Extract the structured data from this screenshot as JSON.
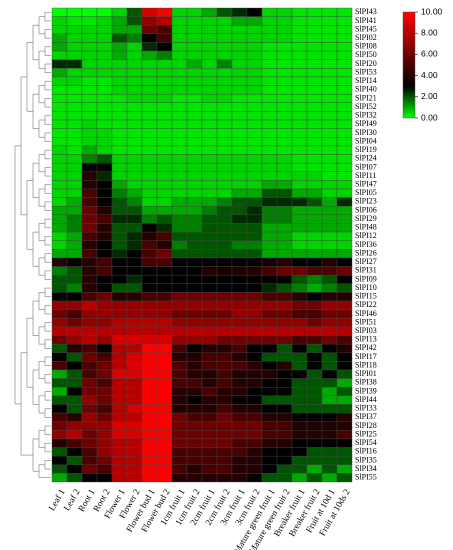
{
  "chart_data": {
    "type": "heatmap",
    "columns": [
      "Leaf 1",
      "Leaf 2",
      "Root 1",
      "Root 2",
      "Flower 1",
      "Flower 2",
      "Flower bud 1",
      "Flower bud 2",
      "1cm fruit 1",
      "1cm fruit 2",
      "2cm fruit 1",
      "2cm fruit 2",
      "3cm fruit 1",
      "3cm fruit 2",
      "Mature green fruit 1",
      "Mature green fruit 2",
      "Breaker fruit 1",
      "Breaker fruit 2",
      "Fruit at 10d 1",
      "Fruit at 10ds 2"
    ],
    "rows": [
      "SlPI43",
      "SlPI41",
      "SlPI45",
      "SlPI02",
      "SlPI08",
      "SlPI50",
      "SlPI20",
      "SlPI53",
      "SlPI14",
      "SlPI40",
      "SlPI21",
      "SlPI52",
      "SlPI32",
      "SlPI49",
      "SlPI30",
      "SlPI04",
      "SlPI19",
      "SlPI24",
      "SlPI07",
      "SlPI11",
      "SlPI47",
      "SlPI05",
      "SlPI23",
      "SlPI06",
      "SlPI29",
      "SlPI48",
      "SlPI12",
      "SlPI36",
      "SlPI26",
      "SlPI27",
      "SlPI31",
      "SlPI09",
      "SlPI10",
      "SlPI15",
      "SlPI22",
      "SlPI46",
      "SlPI51",
      "SlPI03",
      "SlPI13",
      "SlPI42",
      "SlPI17",
      "SlPI18",
      "SlPI01",
      "SlPI38",
      "SlPI39",
      "SlPI44",
      "SlPI33",
      "SlPI37",
      "SlPI28",
      "SlPI25",
      "SlPI54",
      "SlPI16",
      "SlPI35",
      "SlPI34",
      "SlPI55"
    ],
    "values": [
      [
        0,
        0,
        0,
        0,
        0.5,
        2,
        9,
        10,
        0.5,
        0.5,
        1,
        2,
        2.5,
        3,
        0.5,
        0.5,
        0.3,
        0.3,
        0.3,
        0.3
      ],
      [
        0.5,
        0.3,
        0.3,
        0.5,
        1,
        2,
        7,
        8,
        0.5,
        0.5,
        0.5,
        0.5,
        1,
        1,
        0.5,
        0.5,
        0.3,
        0.3,
        0.3,
        0.3
      ],
      [
        0.5,
        0.5,
        0.5,
        0.5,
        1,
        1,
        6,
        5,
        0.5,
        0.5,
        0.5,
        0.5,
        0.5,
        0.5,
        0.5,
        0.5,
        0.3,
        0.3,
        0.3,
        0.3
      ],
      [
        1,
        0.5,
        0.5,
        0.5,
        2,
        1.5,
        3,
        5,
        0.5,
        0.5,
        0.5,
        0.5,
        0.5,
        0.5,
        0.5,
        0.5,
        0.3,
        0.3,
        0.3,
        0.3
      ],
      [
        1,
        0.5,
        0.5,
        0.5,
        1,
        0.5,
        2.5,
        3,
        0.5,
        0.5,
        0.5,
        0.5,
        0.5,
        0.5,
        0.3,
        0.3,
        0.3,
        0.3,
        0.3,
        0.3
      ],
      [
        0.5,
        0.5,
        0.5,
        0.5,
        1,
        0.5,
        1,
        1.5,
        0.5,
        0.5,
        0.5,
        0.5,
        0.5,
        0.5,
        0.3,
        0.3,
        0.3,
        0.3,
        0.3,
        0.3
      ],
      [
        2.5,
        2.5,
        0.5,
        0.5,
        0.5,
        0.5,
        0.5,
        0.5,
        0.5,
        1,
        0.5,
        1.5,
        0.5,
        0.5,
        0.3,
        0.3,
        0.3,
        0.3,
        0.3,
        0.3
      ],
      [
        1,
        0.5,
        0.5,
        0.5,
        0.5,
        0.5,
        0.5,
        0.5,
        0.5,
        0.5,
        0.5,
        0.5,
        0.5,
        0.5,
        0.3,
        0.3,
        0.3,
        0.3,
        0.3,
        0.3
      ],
      [
        0.5,
        0.5,
        0.3,
        0.3,
        0.5,
        0.5,
        0.5,
        0.5,
        0.5,
        0.5,
        0.5,
        0.5,
        0.5,
        0.5,
        0.3,
        0.3,
        0.3,
        0.3,
        0.3,
        0.3
      ],
      [
        0.3,
        0.3,
        0.3,
        0.3,
        0.5,
        0.5,
        0.5,
        0.5,
        0.5,
        0.5,
        0.5,
        0.5,
        0.5,
        0.5,
        0.3,
        0.3,
        0.3,
        0.3,
        0.3,
        0.3
      ],
      [
        0.3,
        0.3,
        0.3,
        0.3,
        0.3,
        0.5,
        0.5,
        0.5,
        0.3,
        0.3,
        0.5,
        0.5,
        0.3,
        0.3,
        0.3,
        0.3,
        0.3,
        0.3,
        0.3,
        0.3
      ],
      [
        0.3,
        0.3,
        0.3,
        0.3,
        0.3,
        0.3,
        0.3,
        0.3,
        0.3,
        0.3,
        0.3,
        0.3,
        0.3,
        0.3,
        0.3,
        0.3,
        0.3,
        0.3,
        0.3,
        0.3
      ],
      [
        0.3,
        0.3,
        0.3,
        0.3,
        0.3,
        0.3,
        0.3,
        0.3,
        0.3,
        0.3,
        0.3,
        0.3,
        0.3,
        0.3,
        0.3,
        0.3,
        0.3,
        0.3,
        0.3,
        0.3
      ],
      [
        0.3,
        0.3,
        0.5,
        0.3,
        0.3,
        0.3,
        0.3,
        0.3,
        0.3,
        0.3,
        0.3,
        0.3,
        0.3,
        0.3,
        0.3,
        0.3,
        0.3,
        0.3,
        0.3,
        0.3
      ],
      [
        0.3,
        0.3,
        0.5,
        0.5,
        0.3,
        0.3,
        0.3,
        0.3,
        0.3,
        0.3,
        0.3,
        0.3,
        0.3,
        0.3,
        0.3,
        0.3,
        0.3,
        0.3,
        0.3,
        0.3
      ],
      [
        0.3,
        0.3,
        0.5,
        0.5,
        0.3,
        0.3,
        0.3,
        0.3,
        0.3,
        0.3,
        0.3,
        0.3,
        0.3,
        0.3,
        0.3,
        0.3,
        0.3,
        0.3,
        0.3,
        0.3
      ],
      [
        0.5,
        0.3,
        1,
        0.5,
        0.3,
        0.3,
        0.3,
        0.3,
        0.3,
        0.3,
        0.3,
        0.3,
        0.3,
        0.3,
        0.3,
        0.3,
        0.3,
        0.3,
        0.3,
        0.3
      ],
      [
        0.5,
        0.5,
        1.5,
        2,
        0.5,
        0.5,
        0.5,
        0.5,
        0.5,
        0.5,
        0.5,
        0.5,
        0.5,
        0.5,
        0.5,
        0.5,
        0.3,
        0.3,
        0.3,
        0.3
      ],
      [
        0.5,
        0.5,
        3,
        3,
        0.5,
        0.5,
        0.5,
        0.5,
        0.5,
        0.5,
        0.5,
        0.5,
        0.5,
        0.5,
        0.5,
        0.5,
        0.3,
        0.3,
        0.3,
        0.3
      ],
      [
        0.5,
        0.5,
        4,
        2.5,
        0.5,
        0.5,
        0.5,
        0.5,
        0.5,
        0.5,
        0.5,
        0.5,
        0.5,
        0.5,
        0.5,
        0.5,
        0.5,
        0.5,
        0.3,
        0.3
      ],
      [
        0.5,
        0.5,
        4,
        3,
        1,
        0.5,
        0.5,
        0.5,
        0.5,
        0.5,
        0.5,
        0.5,
        0.5,
        0.5,
        1,
        1,
        0.5,
        0.5,
        0.5,
        0.5
      ],
      [
        0.5,
        0.5,
        5,
        3,
        1.5,
        1,
        0.5,
        0.5,
        0.5,
        0.5,
        0.5,
        0.5,
        1,
        1,
        2,
        2,
        1,
        1,
        0.5,
        0.5
      ],
      [
        0.5,
        1,
        5,
        3,
        2,
        1.5,
        0.5,
        0.5,
        1,
        1,
        1,
        1.5,
        2,
        2,
        2.5,
        2.5,
        2.5,
        2,
        1,
        2.5
      ],
      [
        1,
        1,
        6,
        4,
        2,
        2,
        1,
        1,
        1,
        1,
        1.5,
        2,
        2,
        2.5,
        1.5,
        1.5,
        1,
        1,
        1,
        1
      ],
      [
        1,
        1.5,
        6,
        5,
        2.5,
        2.5,
        1.5,
        2,
        1.5,
        1.5,
        2,
        2,
        2.5,
        2.5,
        1.5,
        1.5,
        1,
        1,
        1,
        1
      ],
      [
        1,
        1.5,
        6,
        4,
        2,
        2,
        3,
        2.5,
        1.5,
        1.5,
        2,
        2,
        2,
        2,
        1,
        1,
        1,
        1,
        1,
        1
      ],
      [
        0.5,
        1,
        5,
        4,
        2,
        2.5,
        4,
        5,
        2,
        2,
        2,
        2,
        2,
        2,
        1,
        1,
        0.5,
        0.5,
        0.5,
        0.5
      ],
      [
        0.5,
        1,
        4,
        3,
        2,
        2.5,
        5,
        4,
        1.5,
        2,
        2,
        2,
        1.5,
        1.5,
        1,
        1,
        0.5,
        0.5,
        0.5,
        0.5
      ],
      [
        1,
        1,
        5,
        3,
        2.5,
        3,
        5,
        6,
        2,
        2,
        2,
        2,
        2,
        2,
        1,
        1,
        1,
        1,
        1,
        1
      ],
      [
        4,
        3,
        4,
        5,
        3,
        3,
        5,
        5,
        3,
        3,
        3,
        3,
        3,
        3,
        3.5,
        4,
        3,
        3,
        4,
        3
      ],
      [
        1.5,
        2,
        4,
        5,
        3,
        3,
        3,
        3,
        3,
        3,
        4,
        3.5,
        4,
        4,
        5,
        6,
        6,
        5,
        5,
        6
      ],
      [
        2,
        2,
        4,
        3,
        3,
        2.5,
        3,
        3,
        3,
        3,
        3,
        3,
        3,
        3,
        3,
        3,
        2,
        1.5,
        2,
        3
      ],
      [
        2,
        1.5,
        4,
        3,
        2,
        2,
        3,
        3,
        3,
        3,
        3,
        3,
        3,
        3,
        2.5,
        2,
        1.5,
        1,
        1.5,
        2
      ],
      [
        3,
        3,
        5,
        6,
        4,
        4,
        5,
        5,
        6,
        6,
        6,
        6,
        6,
        6,
        5,
        5,
        4,
        3,
        4,
        4
      ],
      [
        7,
        7,
        8,
        7,
        7,
        7,
        7,
        7,
        7,
        7,
        7,
        7,
        7,
        7,
        7,
        7,
        6,
        6,
        7,
        7
      ],
      [
        6,
        5,
        7,
        7,
        7,
        7,
        7,
        7,
        6,
        6,
        6,
        6,
        7,
        7,
        6,
        6,
        5,
        5,
        6,
        6
      ],
      [
        7,
        6,
        7,
        7,
        8,
        8,
        8,
        8,
        7,
        7,
        7,
        7,
        7,
        7,
        7,
        7,
        7,
        6,
        7,
        7
      ],
      [
        8,
        8,
        8,
        8,
        8,
        8,
        8,
        8,
        8,
        8,
        8,
        8,
        8,
        8,
        8,
        8,
        8,
        8,
        8,
        8
      ],
      [
        6,
        7,
        8,
        7,
        9,
        9,
        9,
        9,
        7,
        7,
        7,
        6,
        6,
        6,
        6,
        6,
        5,
        5,
        6,
        5
      ],
      [
        2,
        4,
        5,
        3,
        8,
        8,
        10,
        10,
        5,
        3,
        4,
        4,
        5,
        3,
        3,
        2,
        3,
        2,
        3,
        4
      ],
      [
        3,
        2,
        6,
        5,
        8,
        9,
        10,
        10,
        4,
        4,
        5,
        5,
        4,
        3,
        2,
        2,
        2,
        3,
        2,
        3
      ],
      [
        5,
        3,
        5,
        6,
        8,
        9,
        10,
        10,
        5,
        4,
        5,
        5,
        5,
        4,
        3,
        4,
        2,
        3,
        2,
        3
      ],
      [
        1,
        2,
        5,
        6,
        9,
        9,
        10,
        10,
        5,
        4,
        4,
        5,
        4,
        4,
        4,
        3,
        3,
        2,
        3,
        2
      ],
      [
        2,
        2,
        6,
        5,
        8,
        8,
        10,
        10,
        5,
        5,
        4,
        5,
        4,
        4,
        3,
        3,
        2,
        2,
        2,
        1
      ],
      [
        1,
        3,
        6,
        6,
        8,
        8,
        10,
        10,
        4,
        4,
        5,
        4,
        4,
        3,
        3,
        3,
        2,
        2,
        1,
        2
      ],
      [
        2,
        2,
        7,
        6,
        8,
        8,
        10,
        10,
        4,
        3,
        4,
        4,
        3,
        3,
        2,
        2,
        2,
        2,
        1,
        1
      ],
      [
        3,
        2,
        6,
        5,
        8,
        9,
        10,
        10,
        4,
        4,
        4,
        5,
        4,
        4,
        3,
        3,
        2,
        2,
        2,
        2
      ],
      [
        5,
        4,
        7,
        6,
        8,
        8,
        10,
        10,
        6,
        5,
        5,
        6,
        5,
        5,
        4,
        4,
        3,
        3,
        3,
        4
      ],
      [
        6,
        7,
        7,
        7,
        9,
        9,
        10,
        10,
        6,
        6,
        6,
        6,
        6,
        6,
        5,
        5,
        4,
        4,
        4,
        4
      ],
      [
        7,
        8,
        6,
        7,
        9,
        9,
        10,
        10,
        6,
        6,
        6,
        6,
        6,
        6,
        5,
        5,
        4,
        4,
        4,
        5
      ],
      [
        4,
        5,
        6,
        7,
        8,
        8,
        10,
        10,
        6,
        6,
        6,
        6,
        5,
        5,
        4,
        4,
        3,
        3,
        3,
        3
      ],
      [
        2,
        3,
        5,
        7,
        8,
        8,
        10,
        10,
        5,
        5,
        5,
        5,
        5,
        4,
        3,
        3,
        3,
        2,
        2,
        2
      ],
      [
        3,
        2,
        5,
        6,
        8,
        8,
        10,
        10,
        5,
        5,
        5,
        5,
        4,
        4,
        3,
        3,
        2,
        2,
        2,
        2
      ],
      [
        2,
        3,
        6,
        5,
        8,
        8,
        10,
        10,
        5,
        4,
        5,
        5,
        4,
        4,
        3,
        2,
        2,
        1,
        2,
        1
      ],
      [
        1,
        2,
        3,
        3,
        8,
        8,
        10,
        10,
        4,
        4,
        4,
        4,
        4,
        3,
        2,
        2,
        1,
        2,
        1,
        2
      ]
    ],
    "colormap": [
      {
        "value": 0,
        "color": "#00ff00"
      },
      {
        "value": 3,
        "color": "#000000"
      },
      {
        "value": 10,
        "color": "#ff0000"
      }
    ],
    "zlim": [
      0,
      10
    ],
    "zticks": [
      {
        "value": 0,
        "label": "0.00"
      },
      {
        "value": 2,
        "label": "2.00"
      },
      {
        "value": 4,
        "label": "4.00"
      },
      {
        "value": 6,
        "label": "6.00"
      },
      {
        "value": 8,
        "label": "8.00"
      },
      {
        "value": 10,
        "label": "10.00"
      }
    ]
  }
}
